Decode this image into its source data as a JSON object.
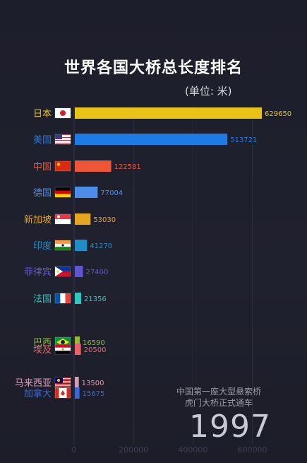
{
  "chart_data": {
    "type": "bar",
    "orientation": "horizontal",
    "title": "世界各国大桥总长度排名",
    "unit": "(单位: 米)",
    "categories": [
      "日本",
      "美国",
      "中国",
      "德国",
      "新加坡",
      "印度",
      "菲律宾",
      "法国",
      "巴西",
      "埃及",
      "马来西亚",
      "加拿大"
    ],
    "values": [
      629650,
      513721,
      122581,
      77004,
      53030,
      41270,
      27400,
      21356,
      16590,
      20500,
      13500,
      15675
    ],
    "value_labels": [
      "629650",
      "513721",
      "122581",
      "77004",
      "53030",
      "41270",
      "27400",
      "21356",
      "16590",
      "20500",
      "13500",
      "15675"
    ],
    "colors": [
      "#e8c419",
      "#1f7ae6",
      "#ee5638",
      "#4d8de8",
      "#e5a520",
      "#1f8ec4",
      "#6154d2",
      "#2fc6c0",
      "#8fbc2e",
      "#e8636a",
      "#d79ab5",
      "#3a68d6"
    ],
    "x_ticks": [
      "0",
      "200000",
      "400000",
      "600000"
    ],
    "x_tick_values": [
      0,
      200000,
      400000,
      600000
    ],
    "xlim": [
      0,
      629650
    ],
    "grid": true,
    "legend": "none"
  },
  "annotation": {
    "line1": "中国第一座大型悬索桥",
    "line2": "虎门大桥正式通车",
    "year": "1997"
  }
}
